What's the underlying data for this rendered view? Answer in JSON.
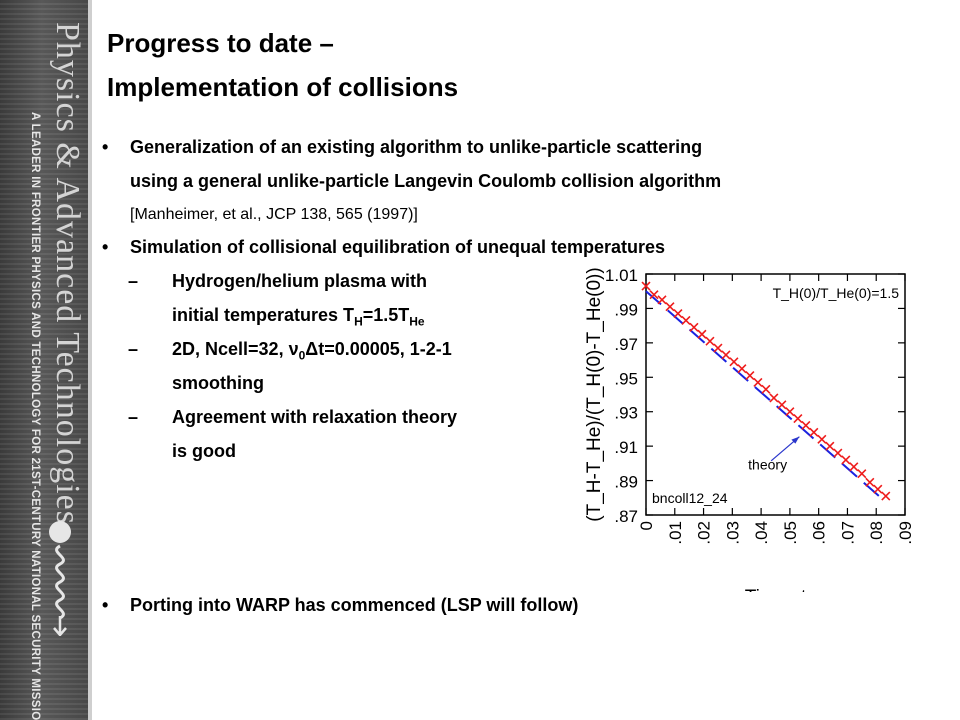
{
  "sidebar": {
    "title": "Physics & Advanced Technologies",
    "tagline": "A LEADER IN FRONTIER PHYSICS AND TECHNOLOGY FOR 21ST-CENTURY NATIONAL SECURITY MISSIONS"
  },
  "slide": {
    "title_line1": "Progress to date –",
    "title_line2": "Implementation of collisions",
    "bullets": [
      {
        "marker": "•",
        "line1": "Generalization of an existing algorithm to unlike-particle scattering",
        "line2": "using a general unlike-particle Langevin Coulomb collision algorithm",
        "line3": "[Manheimer, et al., JCP 138, 565 (1997)]"
      },
      {
        "marker": "•",
        "line1": "Simulation of collisional equilibration of unequal temperatures"
      },
      {
        "marker": "•",
        "line1": "Porting into WARP has commenced (LSP will follow)"
      }
    ],
    "subitems": [
      {
        "marker": "–",
        "line1": "Hydrogen/helium plasma with",
        "line2_pre": "initial temperatures T",
        "line2_sub1": "H",
        "line2_mid": "=1.5T",
        "line2_sub2": "He"
      },
      {
        "marker": "–",
        "line1_pre": "2D, Ncell=32, ",
        "line1_nu": "ν",
        "line1_sub": "0",
        "line1_post": "Δt=0.00005, 1-2-1",
        "line2": "smoothing"
      },
      {
        "marker": "–",
        "line1": "Agreement with relaxation theory",
        "line2": "is good"
      }
    ]
  },
  "chart_data": {
    "type": "line",
    "xlabel": "Time νt",
    "ylabel": "(T_H-T_He)/(T_H(0)-T_He(0))",
    "xlim": [
      0,
      0.09
    ],
    "ylim": [
      0.87,
      1.01
    ],
    "x_ticks": [
      "0",
      ".01",
      ".02",
      ".03",
      ".04",
      ".05",
      ".06",
      ".07",
      ".08",
      ".09"
    ],
    "y_ticks": [
      ".87",
      ".89",
      ".91",
      ".93",
      ".95",
      ".97",
      ".99",
      "1.01"
    ],
    "annotations": {
      "top_right": "T_H(0)/T_He(0)=1.5",
      "theory_label": "theory",
      "run_label": "bncoll12_24"
    },
    "series": [
      {
        "style": "dashed",
        "color": "#1a22e0",
        "x": [
          0,
          0.083
        ],
        "y": [
          1.0,
          0.878
        ]
      },
      {
        "style": "markers-x",
        "color": "#ee1c1c",
        "x": [
          0.0,
          0.00278,
          0.00556,
          0.00833,
          0.01111,
          0.01389,
          0.01667,
          0.01944,
          0.02222,
          0.025,
          0.02778,
          0.03056,
          0.03333,
          0.03611,
          0.03889,
          0.04167,
          0.04444,
          0.04722,
          0.05,
          0.05278,
          0.05556,
          0.05833,
          0.06111,
          0.06389,
          0.06667,
          0.06944,
          0.07222,
          0.075,
          0.07778,
          0.08056,
          0.08333
        ],
        "y": [
          1.003,
          0.998,
          0.995,
          0.991,
          0.987,
          0.983,
          0.979,
          0.975,
          0.971,
          0.967,
          0.963,
          0.959,
          0.955,
          0.951,
          0.947,
          0.943,
          0.938,
          0.934,
          0.93,
          0.926,
          0.922,
          0.918,
          0.914,
          0.91,
          0.906,
          0.902,
          0.898,
          0.894,
          0.889,
          0.885,
          0.881
        ]
      }
    ]
  },
  "colors": {
    "marker_red": "#ee1c1c",
    "theory_blue": "#1a22e0",
    "sidebar_gray": "#4a4a4a"
  },
  "icons": {
    "logo": "wave-logo-icon"
  }
}
